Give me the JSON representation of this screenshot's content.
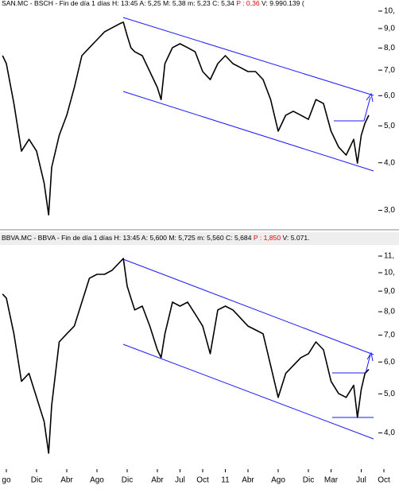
{
  "chart_data": [
    {
      "type": "line",
      "title": "SAN.MC - BSCH - Fin de día 1 días H: 13:45 A: 5,25 M: 5,38 m: 5,23 C: 5,34 ",
      "change": "P : 0,36",
      "volume": " V: 9.990.139 (",
      "log_scale": true,
      "color": "#000000",
      "change_color": "#e00000",
      "xlim": [
        -0.84,
        52
      ],
      "ylim": [
        2.72,
        10.59
      ],
      "yticks": [
        {
          "value": 3,
          "label": "3,0"
        },
        {
          "value": 4,
          "label": "4,0"
        },
        {
          "value": 5,
          "label": "5,0"
        },
        {
          "value": 6,
          "label": "6,0"
        },
        {
          "value": 7,
          "label": "7,0"
        },
        {
          "value": 8,
          "label": "8,0"
        },
        {
          "value": 9,
          "label": "9,0"
        },
        {
          "value": 10,
          "label": "10,"
        }
      ],
      "x": [
        -0.5,
        0,
        1,
        2,
        3,
        4,
        5,
        5.6,
        6,
        7,
        8,
        9,
        10,
        11,
        12,
        13,
        14,
        15,
        15.5,
        16,
        16.5,
        17,
        18,
        19,
        20,
        20.5,
        21,
        22,
        23,
        24,
        25,
        26,
        27,
        28,
        29,
        30,
        31,
        32,
        33,
        34,
        35,
        36,
        37,
        38,
        39,
        40,
        41,
        42,
        43,
        44,
        45,
        46,
        46.5,
        47,
        47.5,
        48
      ],
      "values": [
        7.64,
        7.28,
        5.72,
        4.29,
        4.61,
        4.29,
        3.54,
        2.92,
        3.89,
        4.72,
        5.33,
        6.3,
        7.64,
        8.02,
        8.41,
        8.82,
        9.04,
        9.26,
        9.35,
        8.62,
        8.02,
        7.82,
        7.64,
        6.94,
        6.3,
        5.86,
        7.28,
        8.02,
        8.21,
        8.02,
        7.82,
        6.94,
        6.61,
        7.28,
        7.64,
        7.28,
        7.11,
        6.94,
        6.94,
        6.61,
        5.86,
        4.84,
        5.33,
        5.46,
        5.33,
        5.2,
        5.86,
        5.72,
        4.84,
        4.4,
        4.19,
        4.61,
        3.99,
        4.72,
        5.08,
        5.33
      ]
    },
    {
      "type": "line",
      "title": "BBVA.MC - BBVA - Fin de día 1 días H: 13:45 A: 5,600 M: 5,725 m: 5,560 C: 5,684 ",
      "change": "P : 1,850",
      "volume": " V: 5.071.",
      "log_scale": true,
      "color": "#000000",
      "change_color": "#e00000",
      "xlim": [
        -0.84,
        52
      ],
      "ylim": [
        3.25,
        11.62
      ],
      "yticks": [
        {
          "value": 4,
          "label": "4,0"
        },
        {
          "value": 5,
          "label": "5,0"
        },
        {
          "value": 6,
          "label": "6,0"
        },
        {
          "value": 7,
          "label": "7,0"
        },
        {
          "value": 8,
          "label": "8,0"
        },
        {
          "value": 9,
          "label": "9,0"
        },
        {
          "value": 10,
          "label": "10,"
        },
        {
          "value": 11,
          "label": "11,"
        }
      ],
      "xticks": [
        {
          "value": 0,
          "label": "go"
        },
        {
          "value": 4,
          "label": "Dic"
        },
        {
          "value": 8,
          "label": "Abr"
        },
        {
          "value": 12,
          "label": "Ago"
        },
        {
          "value": 16,
          "label": "Dic"
        },
        {
          "value": 20,
          "label": "Abr"
        },
        {
          "value": 23,
          "label": "Jul"
        },
        {
          "value": 26,
          "label": "Oct"
        },
        {
          "value": 29,
          "label": "11"
        },
        {
          "value": 32,
          "label": "Abr"
        },
        {
          "value": 36,
          "label": "Ago"
        },
        {
          "value": 40,
          "label": "Dic"
        },
        {
          "value": 43,
          "label": "Mar"
        },
        {
          "value": 47,
          "label": "Jul"
        },
        {
          "value": 50,
          "label": "Oct"
        }
      ],
      "x": [
        -0.5,
        0,
        1,
        2,
        3,
        4,
        5,
        5.6,
        6,
        7,
        8,
        9,
        10,
        11,
        12,
        13,
        14,
        15,
        15.5,
        16,
        16.5,
        17,
        18,
        19,
        20,
        20.5,
        21,
        22,
        23,
        24,
        25,
        26,
        27,
        28,
        29,
        30,
        31,
        32,
        33,
        34,
        35,
        36,
        37,
        38,
        39,
        40,
        41,
        42,
        43,
        44,
        45,
        46,
        46.5,
        47,
        47.5,
        48
      ],
      "values": [
        8.85,
        8.65,
        7.05,
        5.37,
        5.62,
        4.9,
        4.27,
        3.56,
        4.68,
        6.73,
        7.05,
        7.37,
        8.45,
        9.69,
        9.91,
        9.91,
        10.14,
        10.61,
        10.85,
        9.26,
        8.65,
        8.08,
        8.26,
        7.37,
        6.43,
        6.15,
        7.05,
        8.45,
        8.26,
        8.45,
        7.9,
        7.37,
        6.29,
        8.08,
        8.26,
        8.08,
        7.72,
        7.37,
        7.21,
        7.05,
        5.88,
        4.9,
        5.62,
        5.88,
        6.15,
        6.29,
        6.73,
        6.43,
        5.37,
        5.01,
        4.9,
        5.25,
        4.37,
        5.13,
        5.62,
        5.75
      ]
    }
  ]
}
